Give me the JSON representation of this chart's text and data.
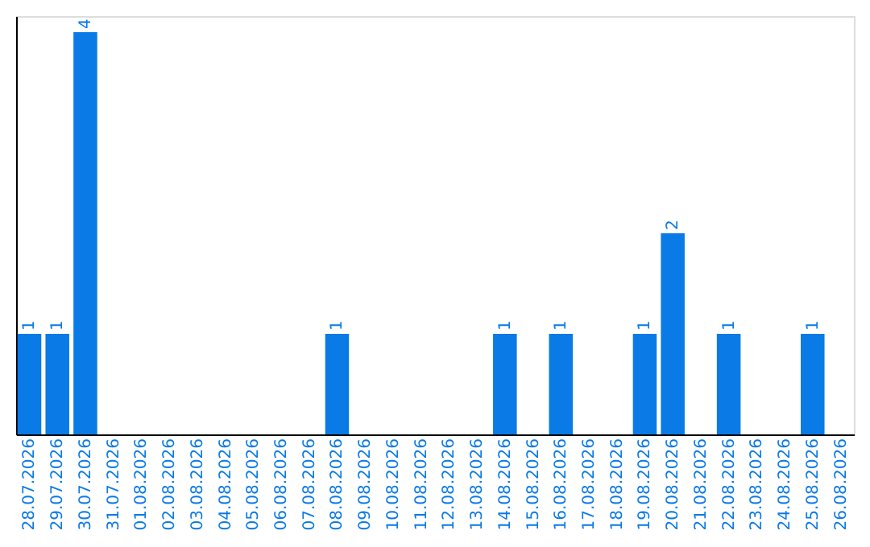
{
  "chart_data": {
    "type": "bar",
    "categories": [
      "28.07.2026",
      "29.07.2026",
      "30.07.2026",
      "31.07.2026",
      "01.08.2026",
      "02.08.2026",
      "03.08.2026",
      "04.08.2026",
      "05.08.2026",
      "06.08.2026",
      "07.08.2026",
      "08.08.2026",
      "09.08.2026",
      "10.08.2026",
      "11.08.2026",
      "12.08.2026",
      "13.08.2026",
      "14.08.2026",
      "15.08.2026",
      "16.08.2026",
      "17.08.2026",
      "18.08.2026",
      "19.08.2026",
      "20.08.2026",
      "21.08.2026",
      "22.08.2026",
      "23.08.2026",
      "24.08.2026",
      "25.08.2026",
      "26.08.2026"
    ],
    "values": [
      1,
      1,
      4,
      0,
      0,
      0,
      0,
      0,
      0,
      0,
      0,
      1,
      0,
      0,
      0,
      0,
      0,
      1,
      0,
      1,
      0,
      0,
      1,
      2,
      0,
      1,
      0,
      0,
      1,
      0
    ],
    "value_labels": [
      "1",
      "1",
      "4",
      null,
      null,
      null,
      null,
      null,
      null,
      null,
      null,
      "1",
      null,
      null,
      null,
      null,
      null,
      "1",
      null,
      "1",
      null,
      null,
      "1",
      "2",
      null,
      "1",
      null,
      null,
      "1",
      null
    ],
    "color": "#0a7ae6",
    "ylim": [
      0,
      4.16
    ],
    "tick_labels": "x",
    "grid": false
  }
}
